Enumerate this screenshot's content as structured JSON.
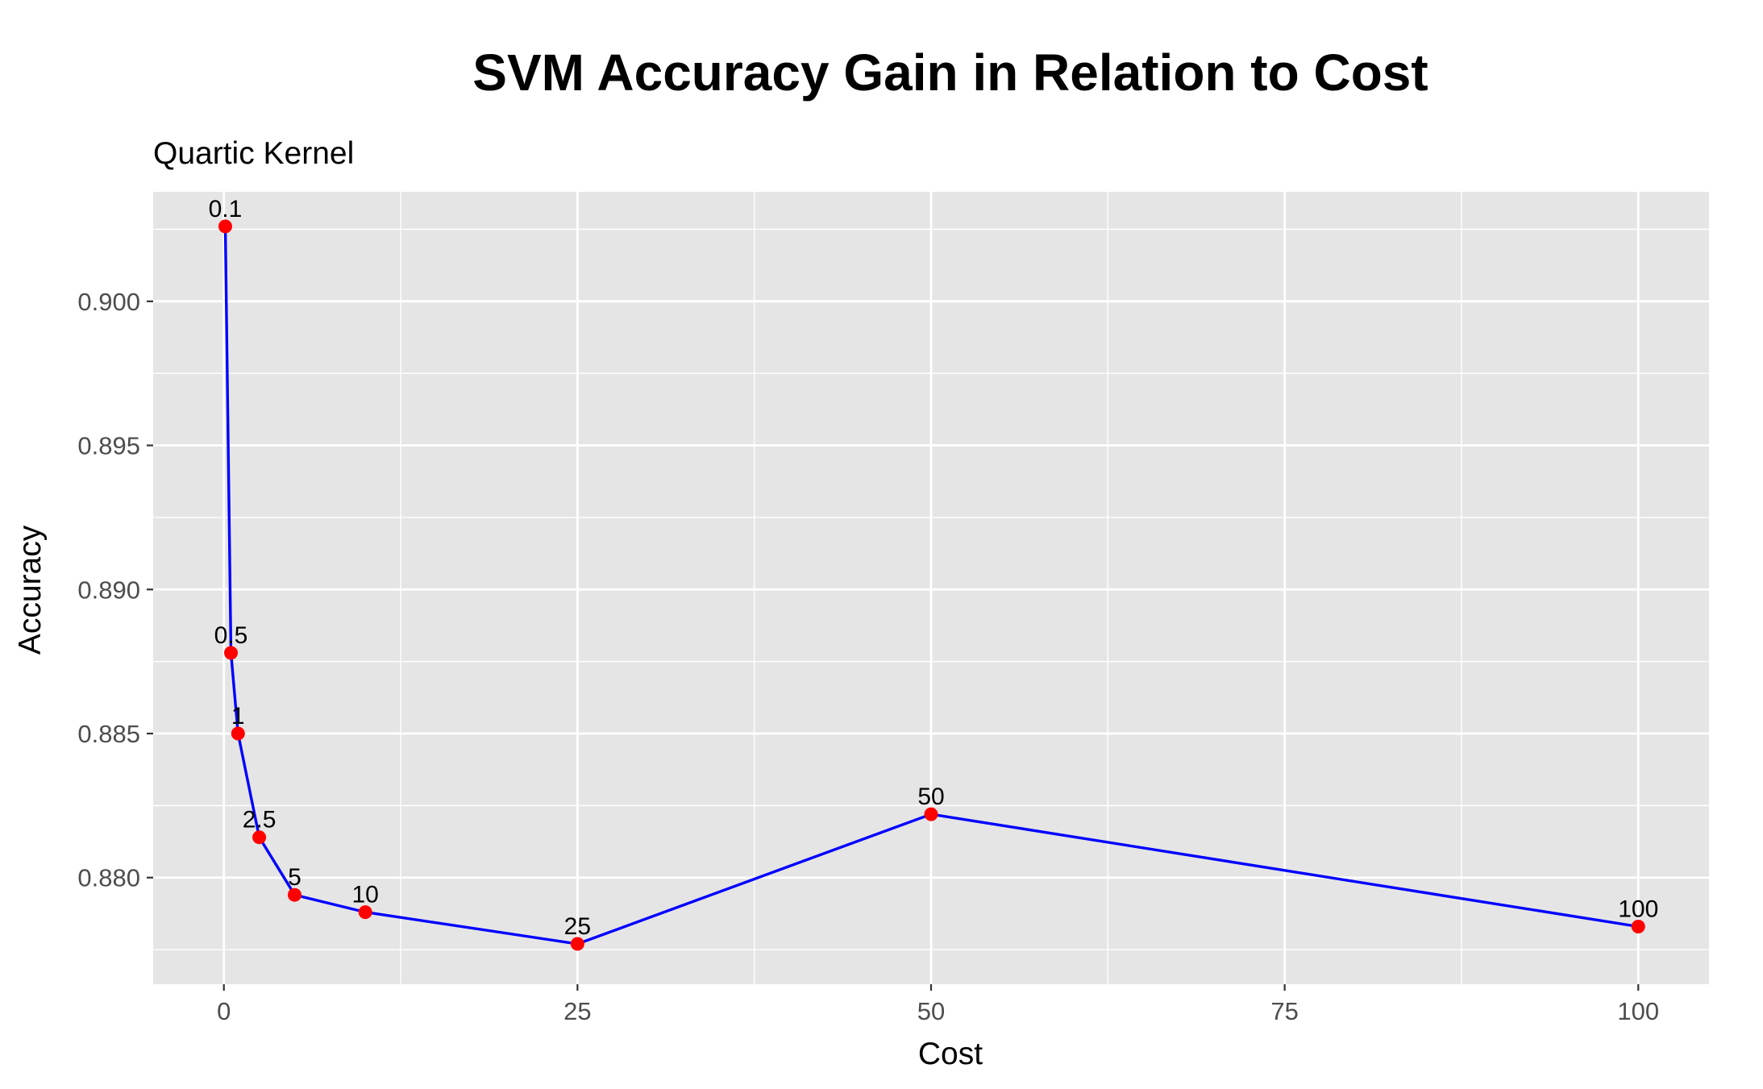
{
  "chart_data": {
    "type": "line",
    "title": "SVM Accuracy Gain in Relation to Cost",
    "subtitle": "Quartic Kernel",
    "xlabel": "Cost",
    "ylabel": "Accuracy",
    "xlim": [
      -5,
      105
    ],
    "ylim": [
      0.8763,
      0.9038
    ],
    "x_ticks": [
      0,
      25,
      50,
      75,
      100
    ],
    "x_tick_labels": [
      "0",
      "25",
      "50",
      "75",
      "100"
    ],
    "y_ticks": [
      0.88,
      0.885,
      0.89,
      0.895,
      0.9
    ],
    "y_tick_labels": [
      "0.880",
      "0.885",
      "0.890",
      "0.895",
      "0.900"
    ],
    "grid": true,
    "line_color": "#0000ff",
    "point_color": "#ff0000",
    "panel_background": "#e5e5e5",
    "points": [
      {
        "x": 0.1,
        "y": 0.9026,
        "label": "0.1"
      },
      {
        "x": 0.5,
        "y": 0.8878,
        "label": "0.5"
      },
      {
        "x": 1,
        "y": 0.885,
        "label": "1"
      },
      {
        "x": 2.5,
        "y": 0.8814,
        "label": "2.5"
      },
      {
        "x": 5,
        "y": 0.8794,
        "label": "5"
      },
      {
        "x": 10,
        "y": 0.8788,
        "label": "10"
      },
      {
        "x": 25,
        "y": 0.8777,
        "label": "25"
      },
      {
        "x": 50,
        "y": 0.8822,
        "label": "50"
      },
      {
        "x": 100,
        "y": 0.8783,
        "label": "100"
      }
    ]
  }
}
